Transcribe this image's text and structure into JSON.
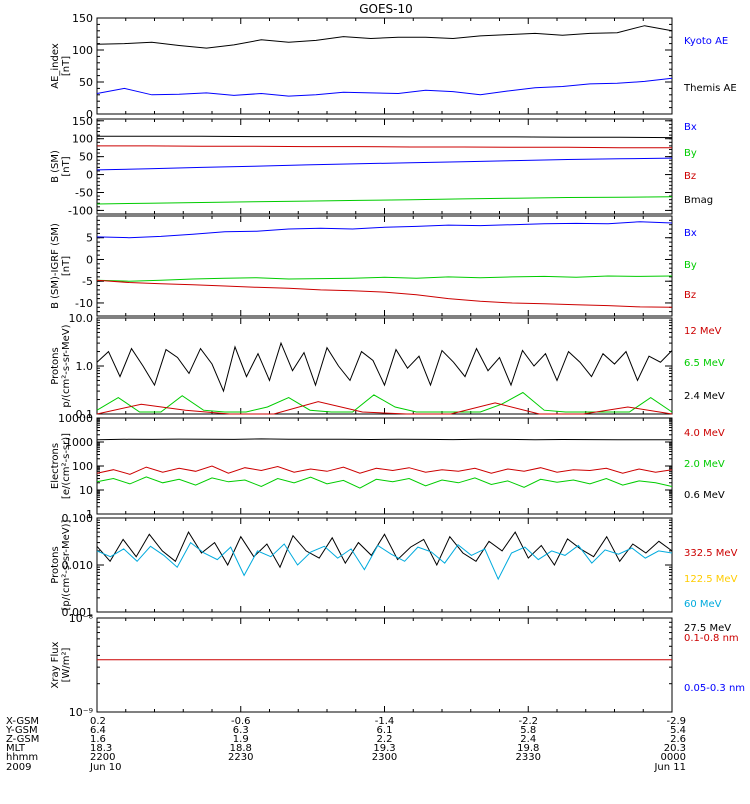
{
  "title": "GOES-10",
  "chart_data": [
    {
      "type": "line",
      "ylabel": [
        "AE_index",
        "[nT]"
      ],
      "ylim": [
        0,
        150
      ],
      "yscale": "linear",
      "yticks": [
        0,
        50,
        100,
        150
      ],
      "ytick_labels": [
        "0",
        "50",
        "100",
        "150"
      ],
      "legend": [
        {
          "name": "Kyoto AE",
          "color": "#0000ff"
        },
        {
          "name": "Themis AE",
          "color": "#000000"
        }
      ],
      "series": [
        {
          "name": "",
          "color": "#000000",
          "values": [
            109,
            110,
            112,
            107,
            103,
            108,
            116,
            112,
            115,
            121,
            118,
            120,
            120,
            118,
            122,
            124,
            126,
            123,
            126,
            127,
            138,
            130
          ]
        },
        {
          "name": "",
          "color": "#0000ff",
          "values": [
            32,
            40,
            30,
            31,
            33,
            29,
            32,
            28,
            30,
            34,
            33,
            32,
            37,
            35,
            30,
            36,
            41,
            43,
            47,
            48,
            51,
            56
          ]
        }
      ]
    },
    {
      "type": "line",
      "ylabel": [
        "B (SM)",
        "[nT]"
      ],
      "ylim": [
        -110,
        155
      ],
      "yscale": "linear",
      "yticks": [
        -100,
        -50,
        0,
        50,
        100,
        150
      ],
      "ytick_labels": [
        "-100",
        "-50",
        "0",
        "50",
        "100",
        "150"
      ],
      "legend": [
        {
          "name": "Bx",
          "color": "#0000ff"
        },
        {
          "name": "By",
          "color": "#00cc00"
        },
        {
          "name": "Bz",
          "color": "#cc0000"
        },
        {
          "name": "Bmag",
          "color": "#000000"
        }
      ],
      "series": [
        {
          "name": "",
          "color": "#000000",
          "values": [
            107,
            107,
            107,
            106,
            106,
            106,
            105,
            105,
            105,
            104,
            104,
            103
          ]
        },
        {
          "name": "",
          "color": "#cc0000",
          "values": [
            80,
            80,
            79,
            79,
            78,
            78,
            77,
            77,
            76,
            76,
            75,
            75
          ]
        },
        {
          "name": "",
          "color": "#0000ff",
          "values": [
            13,
            16,
            20,
            23,
            27,
            30,
            33,
            36,
            39,
            42,
            44,
            46
          ]
        },
        {
          "name": "",
          "color": "#00cc00",
          "values": [
            -82,
            -80,
            -78,
            -76,
            -74,
            -72,
            -70,
            -68,
            -66,
            -64,
            -63,
            -62
          ]
        }
      ]
    },
    {
      "type": "line",
      "ylabel": [
        "B (SM)-IGRF (SM)",
        "[nT]"
      ],
      "ylim": [
        -13,
        10
      ],
      "yscale": "linear",
      "yticks": [
        -10,
        -5,
        0,
        5
      ],
      "ytick_labels": [
        "-10",
        "-5",
        "0",
        "5"
      ],
      "legend": [
        {
          "name": "Bx",
          "color": "#0000ff"
        },
        {
          "name": "By",
          "color": "#00cc00"
        },
        {
          "name": "Bz",
          "color": "#cc0000"
        }
      ],
      "series": [
        {
          "name": "",
          "color": "#0000ff",
          "values": [
            5.2,
            5.0,
            5.3,
            5.8,
            6.4,
            6.5,
            7.0,
            7.2,
            7.0,
            7.4,
            7.6,
            7.9,
            7.8,
            8.0,
            8.2,
            8.3,
            8.2,
            8.7,
            8.4
          ]
        },
        {
          "name": "",
          "color": "#00cc00",
          "values": [
            -4.8,
            -5.0,
            -4.8,
            -4.5,
            -4.3,
            -4.2,
            -4.5,
            -4.4,
            -4.3,
            -4.1,
            -4.3,
            -4.0,
            -4.2,
            -4.0,
            -3.9,
            -4.1,
            -3.8,
            -3.9,
            -3.8
          ]
        },
        {
          "name": "",
          "color": "#cc0000",
          "values": [
            -4.8,
            -5.3,
            -5.6,
            -5.8,
            -6.1,
            -6.4,
            -6.6,
            -7.0,
            -7.2,
            -7.5,
            -8.1,
            -9.0,
            -9.6,
            -10.0,
            -10.2,
            -10.4,
            -10.6,
            -10.9,
            -11.0
          ]
        }
      ]
    },
    {
      "type": "line",
      "ylabel": [
        "Protons",
        "p/(cm²-s-sr-MeV)"
      ],
      "ylim": [
        0.1,
        10
      ],
      "yscale": "log",
      "yticks": [
        0.1,
        1,
        10
      ],
      "ytick_labels": [
        "0.1",
        "1.0",
        "10.0"
      ],
      "legend": [
        {
          "name": "12 MeV",
          "color": "#cc0000"
        },
        {
          "name": "6.5 MeV",
          "color": "#00cc00"
        },
        {
          "name": "2.4 MeV",
          "color": "#000000"
        }
      ],
      "series": [
        {
          "name": "",
          "color": "#000000",
          "values": [
            1.2,
            2.0,
            0.6,
            2.3,
            1.0,
            0.4,
            2.2,
            1.5,
            0.7,
            2.3,
            1.1,
            0.3,
            2.5,
            0.6,
            1.8,
            0.5,
            3.0,
            0.8,
            1.9,
            0.4,
            2.4,
            1.0,
            0.5,
            2.0,
            1.3,
            0.4,
            2.2,
            0.9,
            1.6,
            0.4,
            2.1,
            1.2,
            0.6,
            2.3,
            0.8,
            1.5,
            0.4,
            2.1,
            1.0,
            1.8,
            0.5,
            2.0,
            1.2,
            0.6,
            1.8,
            1.1,
            2.0,
            0.5,
            1.6,
            1.2,
            2.1
          ]
        },
        {
          "name": "",
          "color": "#00cc00",
          "values": [
            0.12,
            0.22,
            0.11,
            0.11,
            0.24,
            0.12,
            0.11,
            0.11,
            0.14,
            0.22,
            0.12,
            0.11,
            0.11,
            0.25,
            0.14,
            0.11,
            0.11,
            0.11,
            0.11,
            0.16,
            0.28,
            0.12,
            0.11,
            0.11,
            0.11,
            0.11,
            0.22,
            0.11
          ]
        },
        {
          "name": "",
          "color": "#cc0000",
          "values": [
            0.1,
            0.16,
            0.12,
            0.1,
            0.1,
            0.18,
            0.11,
            0.1,
            0.1,
            0.17,
            0.1,
            0.1,
            0.14,
            0.1
          ]
        }
      ]
    },
    {
      "type": "line",
      "ylabel": [
        "Electrons",
        "[e/(cm²-s-sr)]"
      ],
      "ylim": [
        1,
        10000
      ],
      "yscale": "log",
      "yticks": [
        1,
        10,
        100,
        1000,
        10000
      ],
      "ytick_labels": [
        "1",
        "10",
        "100",
        "1000",
        "10000"
      ],
      "legend": [
        {
          "name": "4.0 MeV",
          "color": "#cc0000"
        },
        {
          "name": "2.0 MeV",
          "color": "#00cc00"
        },
        {
          "name": "0.6 MeV",
          "color": "#000000"
        }
      ],
      "series": [
        {
          "name": "",
          "color": "#000000",
          "values": [
            1250,
            1300,
            1280,
            1320,
            1300,
            1280,
            1350,
            1300,
            1290,
            1310,
            1270,
            1300,
            1280,
            1260,
            1300,
            1280,
            1250,
            1270,
            1260,
            1240,
            1230,
            1250
          ]
        },
        {
          "name": "",
          "color": "#cc0000",
          "values": [
            50,
            70,
            45,
            90,
            55,
            80,
            60,
            100,
            50,
            85,
            65,
            95,
            55,
            75,
            60,
            90,
            50,
            80,
            65,
            85,
            55,
            70,
            60,
            80,
            50,
            75,
            60,
            85,
            55,
            70,
            65,
            80,
            50,
            75,
            55,
            70
          ]
        },
        {
          "name": "",
          "color": "#00cc00",
          "values": [
            22,
            30,
            18,
            35,
            20,
            28,
            16,
            32,
            22,
            26,
            14,
            30,
            20,
            34,
            18,
            25,
            12,
            28,
            22,
            30,
            15,
            26,
            20,
            32,
            17,
            24,
            13,
            28,
            21,
            26,
            18,
            30,
            16,
            24,
            20,
            14
          ]
        }
      ]
    },
    {
      "type": "line",
      "ylabel": [
        "Protons",
        "[p/(cm²-s-sr-MeV)]"
      ],
      "ylim": [
        0.001,
        0.1
      ],
      "yscale": "log",
      "yticks": [
        0.001,
        0.01,
        0.1
      ],
      "ytick_labels": [
        "0.001",
        "0.010",
        "0.100"
      ],
      "legend": [
        {
          "name": "332.5 MeV",
          "color": "#cc0000"
        },
        {
          "name": "122.5 MeV",
          "color": "#ffcc00"
        },
        {
          "name": "60 MeV",
          "color": "#00aadd"
        },
        {
          "name": "27.5 MeV",
          "color": "#000000"
        }
      ],
      "series": [
        {
          "name": "",
          "color": "#000000",
          "values": [
            0.025,
            0.012,
            0.035,
            0.015,
            0.045,
            0.02,
            0.012,
            0.05,
            0.018,
            0.03,
            0.01,
            0.04,
            0.015,
            0.028,
            0.009,
            0.042,
            0.02,
            0.014,
            0.038,
            0.011,
            0.03,
            0.016,
            0.045,
            0.013,
            0.024,
            0.035,
            0.01,
            0.04,
            0.018,
            0.012,
            0.032,
            0.02,
            0.05,
            0.014,
            0.026,
            0.01,
            0.036,
            0.022,
            0.015,
            0.04,
            0.012,
            0.028,
            0.018,
            0.032,
            0.02
          ]
        },
        {
          "name": "",
          "color": "#00aadd",
          "values": [
            0.02,
            0.015,
            0.022,
            0.012,
            0.025,
            0.016,
            0.009,
            0.03,
            0.018,
            0.013,
            0.024,
            0.006,
            0.02,
            0.015,
            0.028,
            0.01,
            0.019,
            0.025,
            0.014,
            0.022,
            0.008,
            0.026,
            0.017,
            0.012,
            0.024,
            0.019,
            0.011,
            0.027,
            0.016,
            0.022,
            0.005,
            0.018,
            0.024,
            0.013,
            0.02,
            0.016,
            0.026,
            0.011,
            0.021,
            0.017,
            0.023,
            0.014,
            0.02,
            0.018
          ]
        }
      ]
    },
    {
      "type": "line",
      "ylabel": [
        "Xray  Flux",
        "[W/m²]"
      ],
      "ylim": [
        1e-09,
        1e-08
      ],
      "yscale": "log",
      "yticks": [
        1e-09,
        1e-08
      ],
      "ytick_labels": [
        "10⁻⁹",
        "10⁻⁸"
      ],
      "legend": [
        {
          "name": "0.1-0.8 nm",
          "color": "#cc0000"
        },
        {
          "name": "0.05-0.3 nm",
          "color": "#0000ff"
        }
      ],
      "series": [
        {
          "name": "",
          "color": "#cc0000",
          "values": [
            3.6e-09,
            3.6e-09,
            3.6e-09,
            3.6e-09,
            3.6e-09,
            3.6e-09,
            3.6e-09,
            3.6e-09,
            3.6e-09,
            3.6e-09,
            3.6e-09,
            3.6e-09
          ]
        }
      ]
    }
  ],
  "ephemeris": {
    "row_labels": [
      "X-GSM",
      "Y-GSM",
      "Z-GSM",
      "MLT",
      "hhmm",
      "2009"
    ],
    "columns": [
      [
        "0.2",
        "6.4",
        "1.6",
        "18.3",
        "2200",
        "Jun 10"
      ],
      [
        "-0.6",
        "6.3",
        "1.9",
        "18.8",
        "2230",
        ""
      ],
      [
        "-1.4",
        "6.1",
        "2.2",
        "19.3",
        "2300",
        ""
      ],
      [
        "-2.2",
        "5.8",
        "2.4",
        "19.8",
        "2330",
        ""
      ],
      [
        "-2.9",
        "5.4",
        "2.6",
        "20.3",
        "0000",
        "Jun 11"
      ]
    ]
  }
}
